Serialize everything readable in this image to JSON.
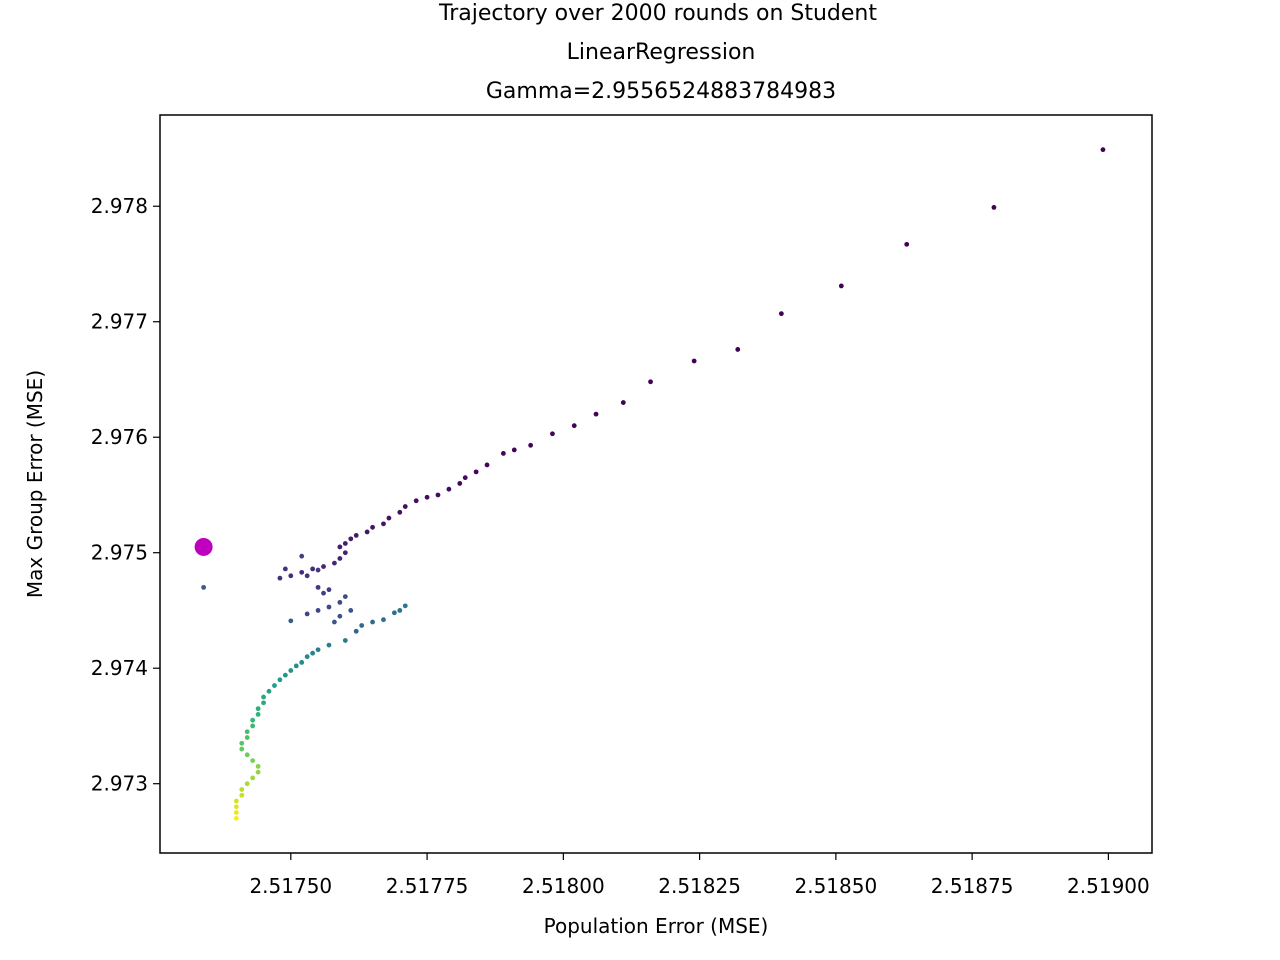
{
  "chart_data": {
    "type": "scatter",
    "title_lines": [
      "Trajectory over 2000 rounds on Student",
      "LinearRegression",
      "Gamma=2.9556524883784983"
    ],
    "xlabel": "Population Error (MSE)",
    "ylabel": "Max Group Error (MSE)",
    "xlim": [
      2.51726,
      2.51908
    ],
    "ylim": [
      2.9724,
      2.97879
    ],
    "xticks": [
      2.5175,
      2.51775,
      2.518,
      2.51825,
      2.5185,
      2.51875,
      2.519
    ],
    "xtick_labels": [
      "2.51750",
      "2.51775",
      "2.51800",
      "2.51825",
      "2.51850",
      "2.51875",
      "2.51900"
    ],
    "yticks": [
      2.973,
      2.974,
      2.975,
      2.976,
      2.977,
      2.978
    ],
    "ytick_labels": [
      "2.973",
      "2.974",
      "2.975",
      "2.976",
      "2.977",
      "2.978"
    ],
    "colormap": "viridis",
    "colormap_stops": [
      "#440154",
      "#482878",
      "#3e4989",
      "#31688e",
      "#26828e",
      "#1f9e89",
      "#35b779",
      "#6ece58",
      "#b5de2b",
      "#fde725"
    ],
    "start_marker": {
      "x": 2.51734,
      "y": 2.97505,
      "color": "#bf00bf"
    },
    "trajectory": [
      [
        2.51899,
        2.97849
      ],
      [
        2.51879,
        2.97799
      ],
      [
        2.51863,
        2.97767
      ],
      [
        2.51851,
        2.97731
      ],
      [
        2.5184,
        2.97707
      ],
      [
        2.51832,
        2.97676
      ],
      [
        2.51824,
        2.97666
      ],
      [
        2.51816,
        2.97648
      ],
      [
        2.51811,
        2.9763
      ],
      [
        2.51806,
        2.9762
      ],
      [
        2.51802,
        2.9761
      ],
      [
        2.51798,
        2.97603
      ],
      [
        2.51794,
        2.97593
      ],
      [
        2.51791,
        2.97589
      ],
      [
        2.51789,
        2.97586
      ],
      [
        2.51786,
        2.97576
      ],
      [
        2.51784,
        2.9757
      ],
      [
        2.51782,
        2.97565
      ],
      [
        2.51781,
        2.9756
      ],
      [
        2.51779,
        2.97555
      ],
      [
        2.51777,
        2.9755
      ],
      [
        2.51775,
        2.97548
      ],
      [
        2.51773,
        2.97545
      ],
      [
        2.51771,
        2.9754
      ],
      [
        2.5177,
        2.97535
      ],
      [
        2.51768,
        2.9753
      ],
      [
        2.51767,
        2.97525
      ],
      [
        2.51765,
        2.97522
      ],
      [
        2.51764,
        2.97518
      ],
      [
        2.51762,
        2.97515
      ],
      [
        2.51761,
        2.97512
      ],
      [
        2.5176,
        2.97508
      ],
      [
        2.51759,
        2.97505
      ],
      [
        2.5176,
        2.975
      ],
      [
        2.51759,
        2.97495
      ],
      [
        2.51758,
        2.97491
      ],
      [
        2.51756,
        2.97488
      ],
      [
        2.51754,
        2.97486
      ],
      [
        2.51752,
        2.97483
      ],
      [
        2.5175,
        2.9748
      ],
      [
        2.51748,
        2.97478
      ],
      [
        2.51749,
        2.97486
      ],
      [
        2.51753,
        2.9748
      ],
      [
        2.51755,
        2.97485
      ],
      [
        2.51755,
        2.9747
      ],
      [
        2.51757,
        2.97468
      ],
      [
        2.51756,
        2.97465
      ],
      [
        2.51752,
        2.97497
      ],
      [
        2.51753,
        2.97447
      ],
      [
        2.51755,
        2.9745
      ],
      [
        2.51757,
        2.97453
      ],
      [
        2.51759,
        2.97457
      ],
      [
        2.5176,
        2.97462
      ],
      [
        2.51759,
        2.97445
      ],
      [
        2.51761,
        2.9745
      ],
      [
        2.51758,
        2.9744
      ],
      [
        2.5175,
        2.97441
      ],
      [
        2.51734,
        2.9747
      ],
      [
        2.51734,
        2.975
      ],
      [
        2.51762,
        2.97432
      ],
      [
        2.51763,
        2.97437
      ],
      [
        2.51765,
        2.9744
      ],
      [
        2.51767,
        2.97442
      ],
      [
        2.51769,
        2.97448
      ],
      [
        2.5177,
        2.9745
      ],
      [
        2.51771,
        2.97454
      ],
      [
        2.5176,
        2.97424
      ],
      [
        2.51757,
        2.9742
      ],
      [
        2.51755,
        2.97416
      ],
      [
        2.51754,
        2.97413
      ],
      [
        2.51753,
        2.9741
      ],
      [
        2.51752,
        2.97405
      ],
      [
        2.51751,
        2.97402
      ],
      [
        2.5175,
        2.97398
      ],
      [
        2.51749,
        2.97394
      ],
      [
        2.51748,
        2.9739
      ],
      [
        2.51747,
        2.97385
      ],
      [
        2.51746,
        2.9738
      ],
      [
        2.51745,
        2.97375
      ],
      [
        2.51745,
        2.9737
      ],
      [
        2.51744,
        2.97365
      ],
      [
        2.51744,
        2.9736
      ],
      [
        2.51743,
        2.97355
      ],
      [
        2.51743,
        2.9735
      ],
      [
        2.51742,
        2.97345
      ],
      [
        2.51742,
        2.9734
      ],
      [
        2.51741,
        2.97335
      ],
      [
        2.51741,
        2.9733
      ],
      [
        2.51742,
        2.97325
      ],
      [
        2.51743,
        2.9732
      ],
      [
        2.51744,
        2.97315
      ],
      [
        2.51744,
        2.9731
      ],
      [
        2.51743,
        2.97305
      ],
      [
        2.51742,
        2.973
      ],
      [
        2.51741,
        2.97295
      ],
      [
        2.51741,
        2.9729
      ],
      [
        2.5174,
        2.97285
      ],
      [
        2.5174,
        2.9728
      ],
      [
        2.5174,
        2.97275
      ],
      [
        2.5174,
        2.9727
      ]
    ]
  }
}
